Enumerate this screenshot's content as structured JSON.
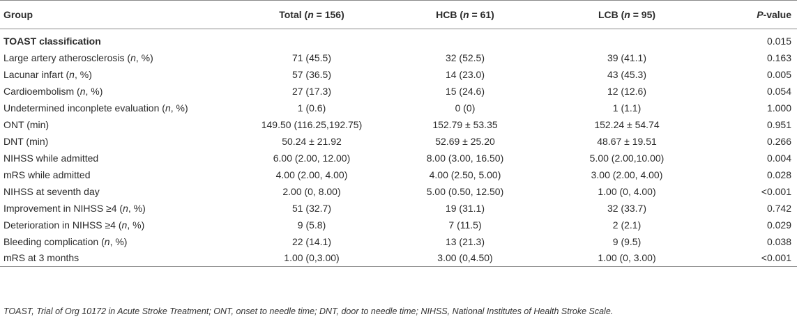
{
  "table": {
    "headers": {
      "group": "Group",
      "total": "Total (n = 156)",
      "hcb": "HCB (n = 61)",
      "lcb": "LCB (n = 95)",
      "p": "P-value"
    },
    "rows": [
      {
        "label": "TOAST classification",
        "total": "",
        "hcb": "",
        "lcb": "",
        "p": "0.015",
        "section": true
      },
      {
        "label": "Large artery atherosclerosis (n, %)",
        "total": "71 (45.5)",
        "hcb": "32 (52.5)",
        "lcb": "39 (41.1)",
        "p": "0.163"
      },
      {
        "label": "Lacunar infart (n, %)",
        "total": "57 (36.5)",
        "hcb": "14 (23.0)",
        "lcb": "43 (45.3)",
        "p": "0.005"
      },
      {
        "label": "Cardioembolism (n, %)",
        "total": "27 (17.3)",
        "hcb": "15 (24.6)",
        "lcb": "12 (12.6)",
        "p": "0.054"
      },
      {
        "label": "Undetermined inconplete evaluation (n, %)",
        "total": "1 (0.6)",
        "hcb": "0 (0)",
        "lcb": "1 (1.1)",
        "p": "1.000"
      },
      {
        "label": "ONT (min)",
        "total": "149.50 (116.25,192.75)",
        "hcb": "152.79 ± 53.35",
        "lcb": "152.24 ± 54.74",
        "p": "0.951"
      },
      {
        "label": "DNT (min)",
        "total": "50.24 ± 21.92",
        "hcb": "52.69 ± 25.20",
        "lcb": "48.67 ± 19.51",
        "p": "0.266"
      },
      {
        "label": "NIHSS while admitted",
        "total": "6.00 (2.00, 12.00)",
        "hcb": "8.00 (3.00, 16.50)",
        "lcb": "5.00 (2.00,10.00)",
        "p": "0.004"
      },
      {
        "label": "mRS while admitted",
        "total": "4.00 (2.00, 4.00)",
        "hcb": "4.00 (2.50, 5.00)",
        "lcb": "3.00 (2.00, 4.00)",
        "p": "0.028"
      },
      {
        "label": "NIHSS at seventh day",
        "total": "2.00 (0, 8.00)",
        "hcb": "5.00 (0.50, 12.50)",
        "lcb": "1.00 (0, 4.00)",
        "p": "<0.001"
      },
      {
        "label": "Improvement in NIHSS ≥4 (n, %)",
        "total": "51 (32.7)",
        "hcb": "19 (31.1)",
        "lcb": "32 (33.7)",
        "p": "0.742"
      },
      {
        "label": "Deterioration in NIHSS ≥4 (n, %)",
        "total": "9 (5.8)",
        "hcb": "7 (11.5)",
        "lcb": "2 (2.1)",
        "p": "0.029"
      },
      {
        "label": "Bleeding complication (n, %)",
        "total": "22 (14.1)",
        "hcb": "13 (21.3)",
        "lcb": "9 (9.5)",
        "p": "0.038"
      },
      {
        "label": "mRS at 3 months",
        "total": "1.00 (0,3.00)",
        "hcb": "3.00 (0,4.50)",
        "lcb": "1.00 (0, 3.00)",
        "p": "<0.001"
      }
    ]
  },
  "footnote": "TOAST, Trial of Org 10172 in Acute Stroke Treatment; ONT, onset to needle time; DNT, door to needle time; NIHSS, National Institutes of Health Stroke Scale."
}
